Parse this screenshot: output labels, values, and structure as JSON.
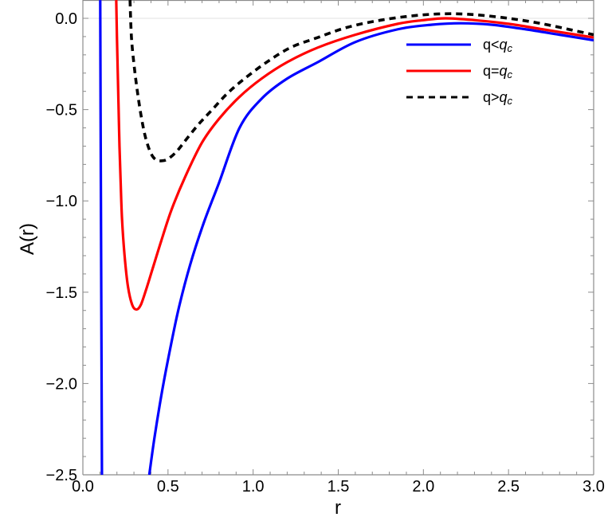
{
  "chart_data": {
    "type": "line",
    "title": "",
    "xlabel": "r",
    "ylabel": "A(r)",
    "xlim": [
      0.0,
      3.0
    ],
    "ylim": [
      -2.5,
      0.1
    ],
    "grid": false,
    "reference_line": {
      "y": 0.0,
      "color": "#e0e0e0"
    },
    "x_ticks": [
      0.0,
      0.5,
      1.0,
      1.5,
      2.0,
      2.5,
      3.0
    ],
    "x_tick_labels": [
      "0.0",
      "0.5",
      "1.0",
      "1.5",
      "2.0",
      "2.5",
      "3.0"
    ],
    "y_ticks": [
      0.0,
      -0.5,
      -1.0,
      -1.5,
      -2.0,
      -2.5
    ],
    "y_tick_labels": [
      "0.0",
      "−0.5",
      "−1.0",
      "−1.5",
      "−2.0",
      "−2.5"
    ],
    "legend_position": "upper right",
    "series": [
      {
        "name": "q<q_c",
        "label_main": "q<",
        "label_italic": "q",
        "label_sub": "c",
        "color": "#0000ff",
        "style": "solid",
        "branches": [
          {
            "x": [
              0.102,
              0.104,
              0.106,
              0.108,
              0.11,
              0.112
            ],
            "y": [
              0.1,
              -0.5,
              -1.0,
              -1.5,
              -2.0,
              -2.5
            ]
          },
          {
            "x": [
              0.39,
              0.42,
              0.46,
              0.5,
              0.56,
              0.63,
              0.71,
              0.8,
              0.92,
              1.05,
              1.2,
              1.38,
              1.6,
              1.85,
              2.05,
              2.22,
              2.4,
              2.6,
              2.8,
              3.0
            ],
            "y": [
              -2.5,
              -2.3,
              -2.07,
              -1.87,
              -1.6,
              -1.35,
              -1.12,
              -0.9,
              -0.6,
              -0.44,
              -0.33,
              -0.24,
              -0.13,
              -0.06,
              -0.035,
              -0.027,
              -0.035,
              -0.06,
              -0.09,
              -0.12
            ]
          }
        ]
      },
      {
        "name": "q=q_c",
        "label_main": "q=",
        "label_italic": "q",
        "label_sub": "c",
        "color": "#ff0000",
        "style": "solid",
        "branches": [
          {
            "x": [
              0.196,
              0.2,
              0.205,
              0.21,
              0.215,
              0.222,
              0.23,
              0.245,
              0.265,
              0.29,
              0.315,
              0.34,
              0.37,
              0.41,
              0.46,
              0.52,
              0.6,
              0.7,
              0.8,
              0.92,
              1.05,
              1.2,
              1.38,
              1.6,
              1.85,
              2.0,
              2.13,
              2.3,
              2.5,
              2.7,
              2.9,
              3.0
            ],
            "y": [
              0.1,
              -0.1,
              -0.3,
              -0.5,
              -0.7,
              -0.9,
              -1.1,
              -1.3,
              -1.47,
              -1.57,
              -1.595,
              -1.57,
              -1.49,
              -1.37,
              -1.22,
              -1.05,
              -0.87,
              -0.68,
              -0.55,
              -0.43,
              -0.33,
              -0.24,
              -0.16,
              -0.09,
              -0.03,
              -0.01,
              0.0,
              -0.01,
              -0.03,
              -0.06,
              -0.09,
              -0.105
            ]
          }
        ]
      },
      {
        "name": "q>q_c",
        "label_main": "q>",
        "label_italic": "q",
        "label_sub": "c",
        "color": "#000000",
        "style": "dashed",
        "branches": [
          {
            "x": [
              0.277,
              0.285,
              0.3,
              0.32,
              0.345,
              0.37,
              0.4,
              0.43,
              0.465,
              0.5,
              0.55,
              0.61,
              0.68,
              0.76,
              0.85,
              0.95,
              1.08,
              1.22,
              1.38,
              1.55,
              1.75,
              1.95,
              2.13,
              2.3,
              2.5,
              2.7,
              2.9,
              3.0
            ],
            "y": [
              0.1,
              -0.1,
              -0.25,
              -0.4,
              -0.55,
              -0.66,
              -0.74,
              -0.775,
              -0.78,
              -0.77,
              -0.73,
              -0.66,
              -0.58,
              -0.5,
              -0.41,
              -0.33,
              -0.24,
              -0.16,
              -0.105,
              -0.05,
              -0.01,
              0.015,
              0.025,
              0.02,
              0.0,
              -0.03,
              -0.07,
              -0.09
            ]
          }
        ]
      }
    ]
  }
}
